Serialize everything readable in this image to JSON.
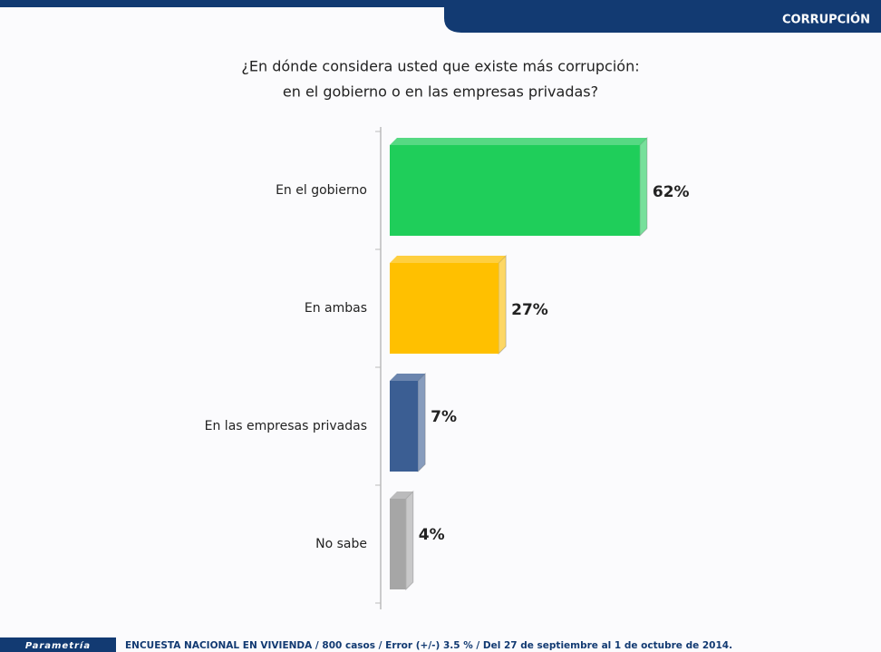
{
  "header": {
    "section": "CORRUPCIÓN"
  },
  "chart_data": {
    "type": "bar",
    "title": [
      "¿En dónde considera usted que existe más corrupción:",
      "en el gobierno o en las empresas privadas?"
    ],
    "categories": [
      "En el gobierno",
      "En ambas",
      "En las empresas privadas",
      "No sabe"
    ],
    "values": [
      62,
      27,
      7,
      4
    ],
    "value_labels": [
      "62%",
      "27%",
      "7%",
      "4%"
    ],
    "colors": [
      "#1fce5a",
      "#ffc000",
      "#3b5e93",
      "#a6a6a6"
    ]
  },
  "footer": {
    "brand": "Parametría",
    "note": "ENCUESTA NACIONAL EN VIVIENDA / 800 casos / Error (+/-) 3.5 % / Del 27 de septiembre al 1 de octubre de 2014."
  }
}
